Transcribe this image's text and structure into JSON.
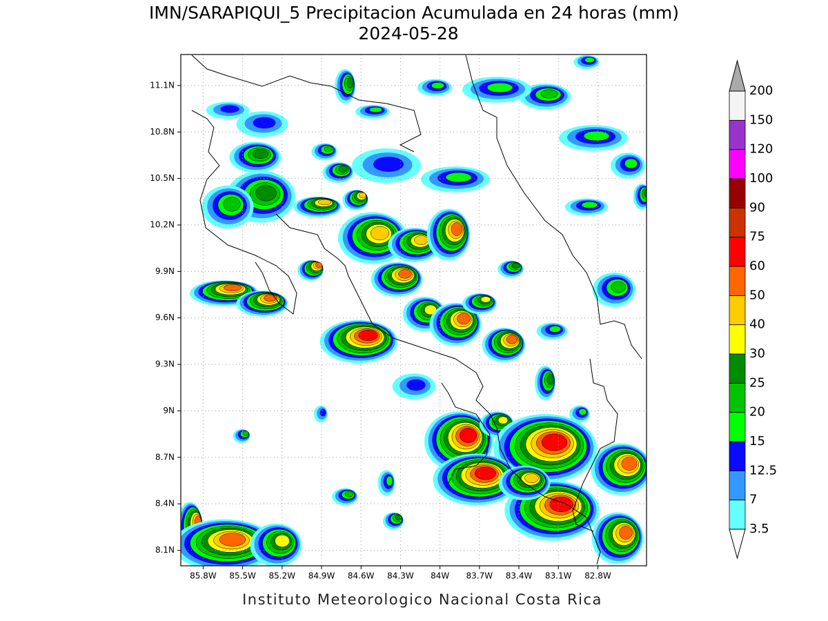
{
  "map": {
    "title": "IMN/SARAPIQUI_5 Precipitacion Acumulada en 24 horas (mm)",
    "date": "2024-05-28",
    "footer": "Instituto Meteorologico Nacional Costa Rica",
    "xlim": [
      -85.97,
      -82.43
    ],
    "ylim": [
      8.0,
      11.3
    ],
    "xticks": [
      {
        "value": -85.8,
        "label": "85.8W"
      },
      {
        "value": -85.5,
        "label": "85.5W"
      },
      {
        "value": -85.2,
        "label": "85.2W"
      },
      {
        "value": -84.9,
        "label": "84.9W"
      },
      {
        "value": -84.6,
        "label": "84.6W"
      },
      {
        "value": -84.3,
        "label": "84.3W"
      },
      {
        "value": -84.0,
        "label": "84W"
      },
      {
        "value": -83.7,
        "label": "83.7W"
      },
      {
        "value": -83.4,
        "label": "83.4W"
      },
      {
        "value": -83.1,
        "label": "83.1W"
      },
      {
        "value": -82.8,
        "label": "82.8W"
      }
    ],
    "yticks": [
      {
        "value": 8.1,
        "label": "8.1N"
      },
      {
        "value": 8.4,
        "label": "8.4N"
      },
      {
        "value": 8.7,
        "label": "8.7N"
      },
      {
        "value": 9.0,
        "label": "9N"
      },
      {
        "value": 9.3,
        "label": "9.3N"
      },
      {
        "value": 9.6,
        "label": "9.6N"
      },
      {
        "value": 9.9,
        "label": "9.9N"
      },
      {
        "value": 10.2,
        "label": "10.2N"
      },
      {
        "value": 10.5,
        "label": "10.5N"
      },
      {
        "value": 10.8,
        "label": "10.8N"
      },
      {
        "value": 11.1,
        "label": "11.1N"
      }
    ],
    "grid": true,
    "colorbar": {
      "levels": [
        3.5,
        7,
        12.5,
        15,
        20,
        25,
        30,
        40,
        50,
        60,
        75,
        90,
        100,
        120,
        150,
        200
      ],
      "colors": [
        "#66ffff",
        "#3399ff",
        "#0a0aff",
        "#00ff00",
        "#00c400",
        "#008c00",
        "#ffff00",
        "#ffcc00",
        "#ff6600",
        "#ff0000",
        "#cc3300",
        "#990000",
        "#ff00ff",
        "#9933cc",
        "#f5f5f5"
      ],
      "over_color": "#aaaaaa",
      "under_color": "#ffffff"
    }
  }
}
